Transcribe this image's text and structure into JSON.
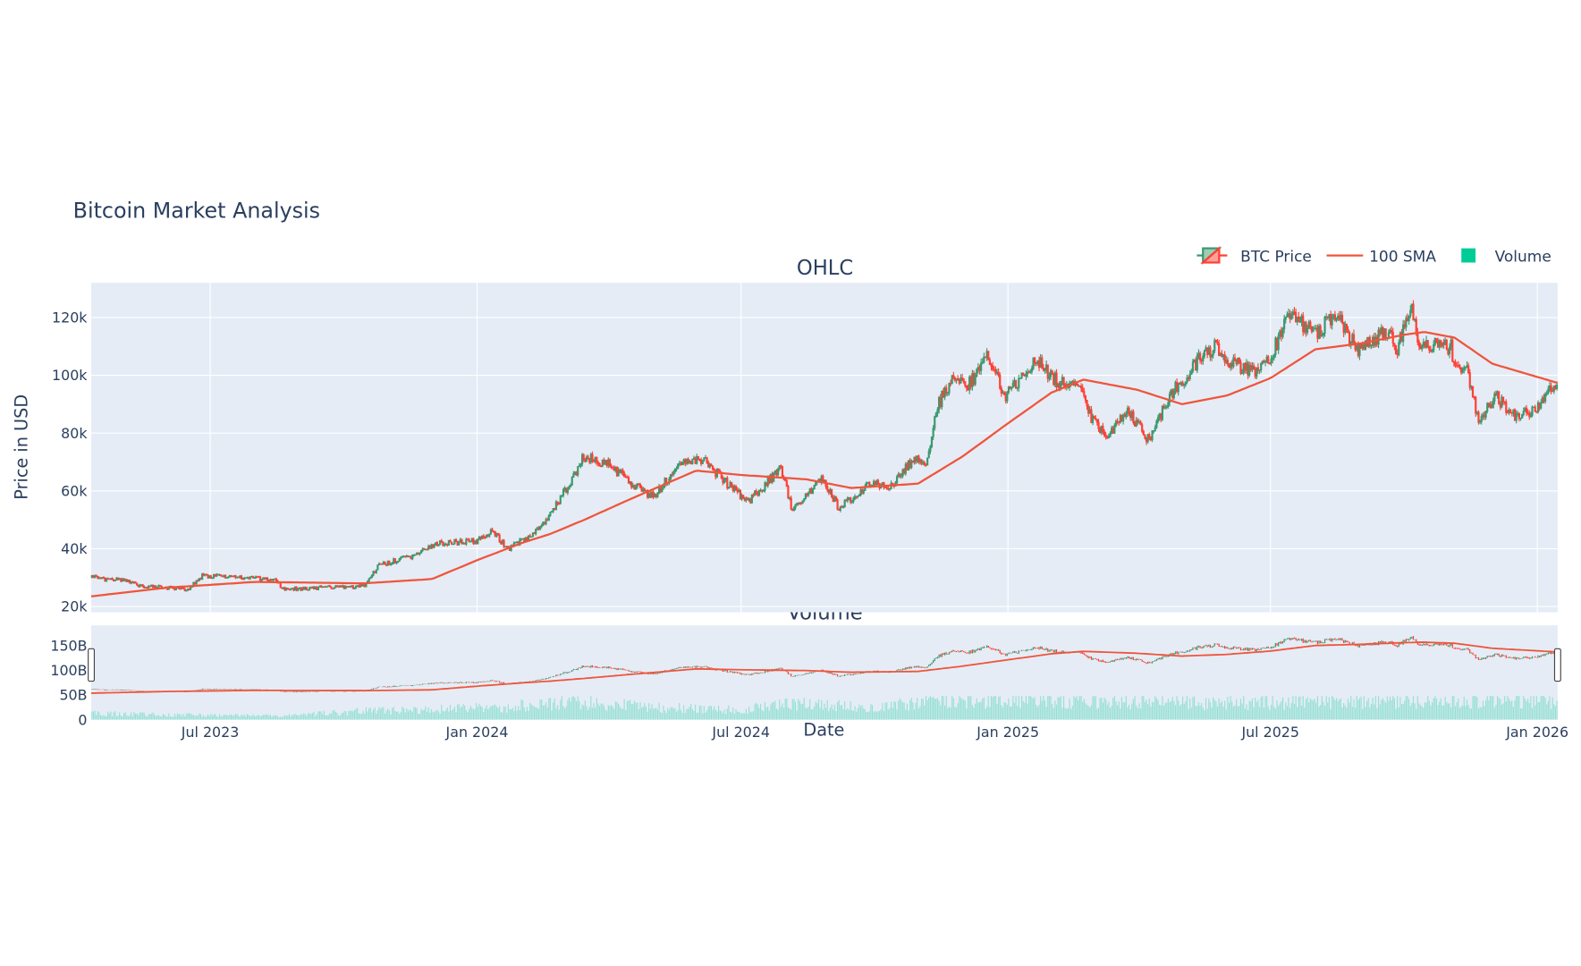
{
  "title": "Bitcoin Market Analysis",
  "legend": {
    "items": [
      {
        "label": "BTC Price",
        "icon": "candlestick-icon"
      },
      {
        "label": "100 SMA",
        "icon": "line-icon"
      },
      {
        "label": "Volume",
        "icon": "square-icon"
      }
    ]
  },
  "colors": {
    "increasing": "#3D9970",
    "decreasing": "#FF4136",
    "sma": "#EF553B",
    "volume": "#00CC96",
    "plot_bg": "#E5ECF6",
    "grid": "#FFFFFF",
    "text": "#2A3F5F"
  },
  "chart_data": [
    {
      "type": "candlestick",
      "title": "OHLC",
      "ylabel": "Price in USD",
      "xlabel": "",
      "ylim": [
        18000,
        132000
      ],
      "xlim": [
        "2023-04-10",
        "2026-01-15"
      ],
      "grid": true,
      "legend_placement": "top-right",
      "yticks": [
        20000,
        40000,
        60000,
        80000,
        100000,
        120000
      ],
      "ytick_labels": [
        "20k",
        "40k",
        "60k",
        "80k",
        "100k",
        "120k"
      ],
      "xticks": [
        "2023-07-01",
        "2024-01-01",
        "2024-07-01",
        "2025-01-01",
        "2025-07-01",
        "2026-01-01"
      ],
      "xtick_labels": [
        "Jul 2023",
        "Jan 2024",
        "Jul 2024",
        "Jan 2025",
        "Jul 2025",
        "Jan 2026"
      ],
      "series": [
        {
          "name": "BTC Price",
          "close": [
            [
              "2023-04-10",
              30000
            ],
            [
              "2023-05-01",
              29000
            ],
            [
              "2023-05-15",
              27000
            ],
            [
              "2023-06-15",
              26000
            ],
            [
              "2023-06-25",
              30500
            ],
            [
              "2023-07-15",
              30500
            ],
            [
              "2023-08-15",
              29000
            ],
            [
              "2023-08-20",
              26000
            ],
            [
              "2023-09-15",
              26500
            ],
            [
              "2023-10-15",
              27000
            ],
            [
              "2023-10-25",
              34500
            ],
            [
              "2023-11-15",
              37000
            ],
            [
              "2023-12-05",
              42000
            ],
            [
              "2023-12-31",
              42500
            ],
            [
              "2024-01-11",
              46000
            ],
            [
              "2024-01-22",
              40000
            ],
            [
              "2024-02-08",
              45000
            ],
            [
              "2024-02-20",
              52000
            ],
            [
              "2024-03-05",
              63000
            ],
            [
              "2024-03-14",
              72000
            ],
            [
              "2024-04-01",
              69000
            ],
            [
              "2024-04-17",
              62000
            ],
            [
              "2024-05-01",
              58000
            ],
            [
              "2024-05-20",
              70000
            ],
            [
              "2024-06-05",
              70500
            ],
            [
              "2024-06-24",
              61000
            ],
            [
              "2024-07-05",
              56000
            ],
            [
              "2024-07-28",
              68000
            ],
            [
              "2024-08-05",
              53000
            ],
            [
              "2024-08-25",
              64000
            ],
            [
              "2024-09-06",
              54000
            ],
            [
              "2024-09-30",
              64000
            ],
            [
              "2024-10-10",
              60000
            ],
            [
              "2024-10-29",
              72000
            ],
            [
              "2024-11-05",
              68000
            ],
            [
              "2024-11-12",
              88000
            ],
            [
              "2024-11-22",
              98500
            ],
            [
              "2024-12-05",
              97000
            ],
            [
              "2024-12-17",
              106000
            ],
            [
              "2024-12-30",
              93000
            ],
            [
              "2025-01-20",
              105000
            ],
            [
              "2025-02-03",
              98000
            ],
            [
              "2025-02-20",
              96000
            ],
            [
              "2025-02-28",
              84000
            ],
            [
              "2025-03-10",
              80000
            ],
            [
              "2025-03-25",
              87000
            ],
            [
              "2025-04-08",
              77000
            ],
            [
              "2025-04-22",
              93000
            ],
            [
              "2025-05-10",
              104000
            ],
            [
              "2025-05-22",
              110000
            ],
            [
              "2025-06-05",
              104000
            ],
            [
              "2025-06-22",
              101000
            ],
            [
              "2025-07-01",
              107000
            ],
            [
              "2025-07-14",
              121000
            ],
            [
              "2025-08-01",
              114000
            ],
            [
              "2025-08-14",
              122000
            ],
            [
              "2025-08-30",
              108000
            ],
            [
              "2025-09-20",
              116000
            ],
            [
              "2025-09-26",
              109000
            ],
            [
              "2025-10-06",
              124500
            ],
            [
              "2025-10-10",
              112000
            ],
            [
              "2025-10-20",
              110000
            ],
            [
              "2025-11-02",
              110000
            ],
            [
              "2025-11-05",
              101000
            ],
            [
              "2025-11-12",
              104000
            ],
            [
              "2025-11-21",
              84000
            ],
            [
              "2025-12-03",
              93000
            ],
            [
              "2025-12-15",
              86000
            ],
            [
              "2025-12-31",
              88000
            ],
            [
              "2026-01-05",
              93000
            ],
            [
              "2026-01-14",
              96500
            ]
          ]
        },
        {
          "name": "100 SMA",
          "points": [
            [
              "2023-04-10",
              23500
            ],
            [
              "2023-06-01",
              26500
            ],
            [
              "2023-08-01",
              28500
            ],
            [
              "2023-10-15",
              28000
            ],
            [
              "2023-12-01",
              29500
            ],
            [
              "2024-01-01",
              36000
            ],
            [
              "2024-02-01",
              42000
            ],
            [
              "2024-02-20",
              45000
            ],
            [
              "2024-03-15",
              50000
            ],
            [
              "2024-04-15",
              57000
            ],
            [
              "2024-05-31",
              67000
            ],
            [
              "2024-07-01",
              65500
            ],
            [
              "2024-08-15",
              64000
            ],
            [
              "2024-09-15",
              61000
            ],
            [
              "2024-10-31",
              62500
            ],
            [
              "2024-12-01",
              72000
            ],
            [
              "2024-12-31",
              83000
            ],
            [
              "2025-01-31",
              94000
            ],
            [
              "2025-02-22",
              98500
            ],
            [
              "2025-03-31",
              95000
            ],
            [
              "2025-05-01",
              90000
            ],
            [
              "2025-06-01",
              93000
            ],
            [
              "2025-07-01",
              99000
            ],
            [
              "2025-08-01",
              109000
            ],
            [
              "2025-09-01",
              111000
            ],
            [
              "2025-10-01",
              114000
            ],
            [
              "2025-10-15",
              115000
            ],
            [
              "2025-11-05",
              113000
            ],
            [
              "2025-12-01",
              104000
            ],
            [
              "2026-01-14",
              97500
            ]
          ]
        }
      ]
    },
    {
      "type": "bar",
      "title": "Volume",
      "xlabel": "Date",
      "ylabel": "",
      "ylim": [
        0,
        191000000000
      ],
      "yticks": [
        0,
        50000000000,
        100000000000,
        150000000000
      ],
      "ytick_labels": [
        "0",
        "50B",
        "100B",
        "150B"
      ],
      "range_slider": true,
      "series": [
        {
          "name": "Volume",
          "level": [
            [
              "2023-04-10",
              16
            ],
            [
              "2023-06-01",
              12
            ],
            [
              "2023-08-15",
              9
            ],
            [
              "2023-10-20",
              22
            ],
            [
              "2023-12-01",
              25
            ],
            [
              "2024-01-15",
              30
            ],
            [
              "2024-03-10",
              45
            ],
            [
              "2024-05-01",
              30
            ],
            [
              "2024-07-01",
              24
            ],
            [
              "2024-08-05",
              40
            ],
            [
              "2024-10-01",
              28
            ],
            [
              "2024-11-10",
              48
            ],
            [
              "2025-03-01",
              47
            ],
            [
              "2025-06-01",
              40
            ],
            [
              "2025-08-01",
              46
            ],
            [
              "2025-11-20",
              48
            ],
            [
              "2026-01-14",
              42
            ]
          ]
        }
      ]
    }
  ]
}
